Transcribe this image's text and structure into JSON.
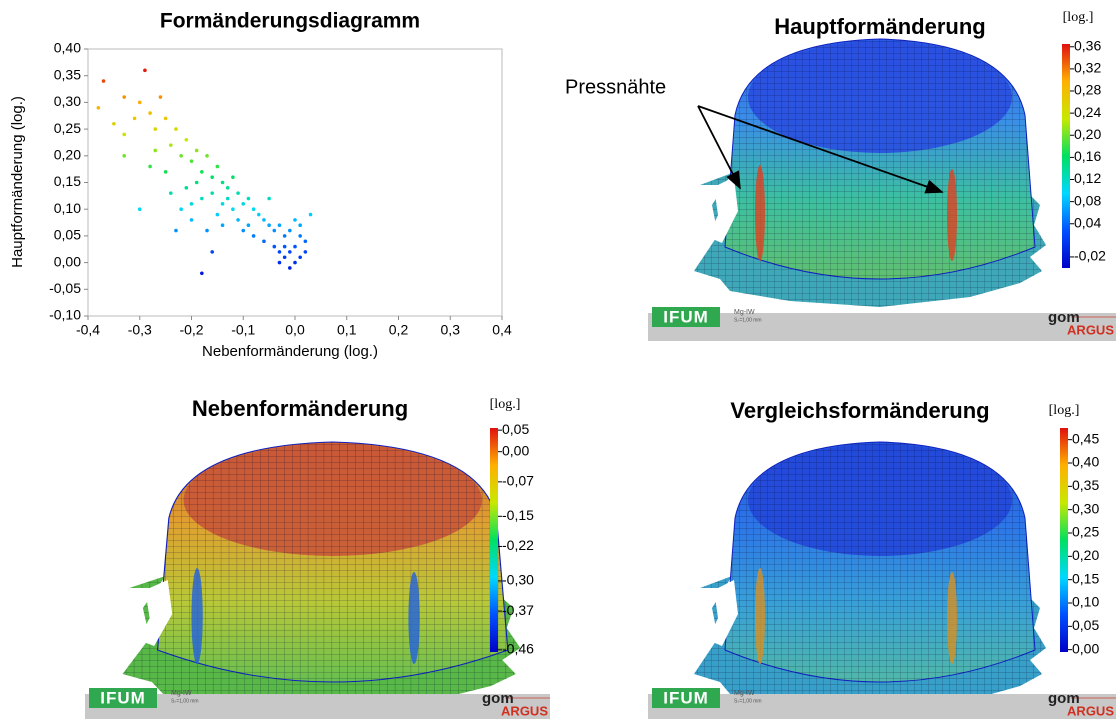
{
  "chart_data": [
    {
      "type": "scatter",
      "title": "Formänderungsdiagramm",
      "x_label": "Nebenformänderung (log.)",
      "y_label": "Hauptformänderung (log.)",
      "xlim": [
        -0.4,
        0.4
      ],
      "ylim": [
        -0.1,
        0.4
      ],
      "xticks": [
        {
          "value": -0.4,
          "label": "-0,4"
        },
        {
          "value": -0.3,
          "label": "-0,3"
        },
        {
          "value": -0.2,
          "label": "-0,2"
        },
        {
          "value": -0.1,
          "label": "-0,1"
        },
        {
          "value": 0,
          "label": "0,0"
        },
        {
          "value": 0.1,
          "label": "0,1"
        },
        {
          "value": 0.2,
          "label": "0,2"
        },
        {
          "value": 0.3,
          "label": "0,3"
        },
        {
          "value": 0.4,
          "label": "0,4"
        }
      ],
      "yticks": [
        {
          "value": 0.4,
          "label": "0,40"
        },
        {
          "value": 0.35,
          "label": "0,35"
        },
        {
          "value": 0.3,
          "label": "0,30"
        },
        {
          "value": 0.25,
          "label": "0,25"
        },
        {
          "value": 0.2,
          "label": "0,20"
        },
        {
          "value": 0.15,
          "label": "0,15"
        },
        {
          "value": 0.1,
          "label": "0,10"
        },
        {
          "value": 0.05,
          "label": "0,05"
        },
        {
          "value": 0,
          "label": "0,00"
        },
        {
          "value": -0.05,
          "label": "-0,05"
        },
        {
          "value": -0.1,
          "label": "-0,10"
        }
      ],
      "x": [
        -0.37,
        -0.38,
        -0.33,
        -0.31,
        -0.29,
        -0.3,
        -0.35,
        -0.33,
        -0.28,
        -0.27,
        -0.26,
        -0.25,
        -0.24,
        -0.23,
        -0.22,
        -0.21,
        -0.2,
        -0.19,
        -0.18,
        -0.17,
        -0.16,
        -0.15,
        -0.14,
        -0.13,
        -0.12,
        -0.11,
        -0.1,
        -0.09,
        -0.08,
        -0.07,
        -0.06,
        -0.05,
        -0.04,
        -0.03,
        -0.02,
        -0.01,
        0.0,
        0.01,
        0.02,
        0.0,
        -0.01,
        -0.02,
        -0.03,
        0.0,
        -0.01,
        0.01,
        -0.02,
        0.02,
        -0.04,
        -0.22,
        -0.2,
        -0.18,
        -0.17,
        -0.15,
        -0.14,
        -0.12,
        -0.11,
        -0.1,
        -0.09,
        -0.08,
        -0.21,
        -0.19,
        -0.13,
        -0.25,
        -0.27,
        -0.3,
        -0.18,
        -0.16,
        -0.05,
        0.03,
        -0.33,
        -0.23,
        -0.14,
        -0.06,
        -0.03,
        0.01,
        -0.24,
        -0.2,
        -0.16,
        -0.28
      ],
      "values": [
        0.34,
        0.29,
        0.31,
        0.27,
        0.36,
        0.3,
        0.26,
        0.24,
        0.28,
        0.25,
        0.31,
        0.27,
        0.22,
        0.25,
        0.2,
        0.23,
        0.19,
        0.21,
        0.17,
        0.2,
        0.16,
        0.18,
        0.15,
        0.14,
        0.16,
        0.13,
        0.11,
        0.12,
        0.1,
        0.09,
        0.08,
        0.07,
        0.06,
        0.07,
        0.05,
        0.06,
        0.08,
        0.07,
        0.04,
        0.03,
        0.02,
        0.01,
        0.0,
        0.0,
        -0.01,
        0.01,
        0.03,
        0.02,
        0.03,
        0.1,
        0.08,
        0.12,
        0.06,
        0.09,
        0.07,
        0.1,
        0.08,
        0.06,
        0.07,
        0.05,
        0.14,
        0.15,
        0.12,
        0.17,
        0.21,
        0.1,
        -0.02,
        0.02,
        0.12,
        0.09,
        0.2,
        0.06,
        0.11,
        0.04,
        0.02,
        0.05,
        0.13,
        0.11,
        0.13,
        0.18
      ]
    },
    {
      "type": "colorbar",
      "title": "Hauptformänderung",
      "unit_label": "[log.]",
      "annotation": "Pressnähte",
      "ylim": [
        -0.04,
        0.365
      ],
      "colormap": [
        "#0000c8",
        "#0050ff",
        "#00d8ff",
        "#00e060",
        "#c8e800",
        "#ffb000",
        "#e01010"
      ],
      "yticks": [
        {
          "value": 0.36,
          "label": "0,36"
        },
        {
          "value": 0.32,
          "label": "0,32"
        },
        {
          "value": 0.28,
          "label": "0,28"
        },
        {
          "value": 0.24,
          "label": "0,24"
        },
        {
          "value": 0.2,
          "label": "0,20"
        },
        {
          "value": 0.16,
          "label": "0,16"
        },
        {
          "value": 0.12,
          "label": "0,12"
        },
        {
          "value": 0.08,
          "label": "0,08"
        },
        {
          "value": 0.04,
          "label": "0,04"
        },
        {
          "value": -0.02,
          "label": "-0,02"
        }
      ]
    },
    {
      "type": "colorbar",
      "title": "Nebenformänderung",
      "unit_label": "[log.]",
      "ylim": [
        -0.465,
        0.055
      ],
      "colormap": [
        "#0000c8",
        "#0050ff",
        "#00d8ff",
        "#00e060",
        "#c8e800",
        "#ffb000",
        "#e01010"
      ],
      "yticks": [
        {
          "value": 0.05,
          "label": "0,05"
        },
        {
          "value": 0,
          "label": "0,00"
        },
        {
          "value": -0.07,
          "label": "-0,07"
        },
        {
          "value": -0.15,
          "label": "-0,15"
        },
        {
          "value": -0.22,
          "label": "-0,22"
        },
        {
          "value": -0.3,
          "label": "-0,30"
        },
        {
          "value": -0.37,
          "label": "-0,37"
        },
        {
          "value": -0.46,
          "label": "-0,46"
        }
      ]
    },
    {
      "type": "colorbar",
      "title": "Vergleichsformänderung",
      "unit_label": "[log.]",
      "ylim": [
        -0.005,
        0.475
      ],
      "colormap": [
        "#0000c8",
        "#0050ff",
        "#00d8ff",
        "#00e060",
        "#c8e800",
        "#ffb000",
        "#e01010"
      ],
      "yticks": [
        {
          "value": 0.45,
          "label": "0,45"
        },
        {
          "value": 0.4,
          "label": "0,40"
        },
        {
          "value": 0.35,
          "label": "0,35"
        },
        {
          "value": 0.3,
          "label": "0,30"
        },
        {
          "value": 0.25,
          "label": "0,25"
        },
        {
          "value": 0.2,
          "label": "0,20"
        },
        {
          "value": 0.15,
          "label": "0,15"
        },
        {
          "value": 0.1,
          "label": "0,10"
        },
        {
          "value": 0.05,
          "label": "0,05"
        },
        {
          "value": 0,
          "label": "0,00"
        }
      ]
    }
  ],
  "footer": {
    "logo": "IFUM",
    "material": "Mg-IW",
    "spacing": "Sₛ=1,00 mm",
    "brand": "gom",
    "product": "ARGUS"
  }
}
